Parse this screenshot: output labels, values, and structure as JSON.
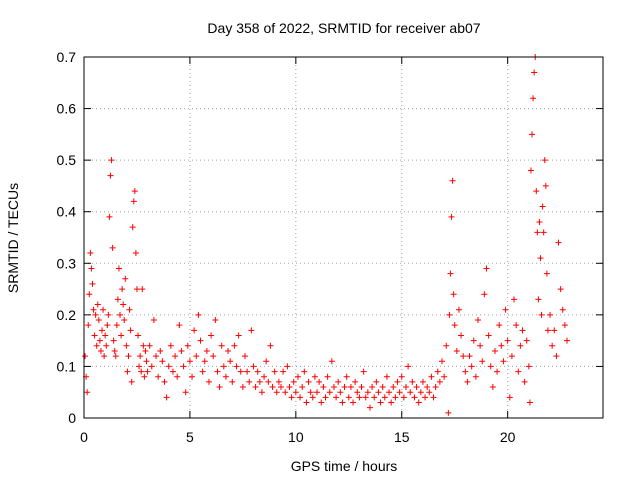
{
  "chart_data": {
    "type": "scatter",
    "title": "Day 358 of 2022, SRMTID for receiver ab07",
    "xlabel": "GPS time / hours",
    "ylabel": "SRMTID / TECUs",
    "xlim": [
      0,
      24.5
    ],
    "ylim": [
      0,
      0.7
    ],
    "x_ticks": [
      0,
      5,
      10,
      15,
      20
    ],
    "x_tick_labels": [
      "0",
      "5",
      "10",
      "15",
      "20"
    ],
    "y_ticks": [
      0,
      0.1,
      0.2,
      0.3,
      0.4,
      0.5,
      0.6,
      0.7
    ],
    "y_tick_labels": [
      "0",
      "0.1",
      "0.2",
      "0.3",
      "0.4",
      "0.5",
      "0.6",
      "0.7"
    ],
    "grid": true,
    "marker": "+",
    "series_color": "#ff0000",
    "series": [
      {
        "name": "SRMTID",
        "points": [
          [
            0.05,
            0.12
          ],
          [
            0.1,
            0.08
          ],
          [
            0.15,
            0.05
          ],
          [
            0.2,
            0.18
          ],
          [
            0.25,
            0.24
          ],
          [
            0.3,
            0.32
          ],
          [
            0.35,
            0.29
          ],
          [
            0.4,
            0.26
          ],
          [
            0.45,
            0.21
          ],
          [
            0.5,
            0.16
          ],
          [
            0.55,
            0.2
          ],
          [
            0.6,
            0.14
          ],
          [
            0.65,
            0.22
          ],
          [
            0.7,
            0.19
          ],
          [
            0.75,
            0.15
          ],
          [
            0.8,
            0.13
          ],
          [
            0.85,
            0.17
          ],
          [
            0.9,
            0.21
          ],
          [
            0.95,
            0.12
          ],
          [
            1.0,
            0.16
          ],
          [
            1.05,
            0.14
          ],
          [
            1.1,
            0.18
          ],
          [
            1.15,
            0.2
          ],
          [
            1.2,
            0.39
          ],
          [
            1.25,
            0.47
          ],
          [
            1.3,
            0.5
          ],
          [
            1.35,
            0.33
          ],
          [
            1.4,
            0.15
          ],
          [
            1.45,
            0.13
          ],
          [
            1.5,
            0.12
          ],
          [
            1.55,
            0.18
          ],
          [
            1.6,
            0.23
          ],
          [
            1.65,
            0.29
          ],
          [
            1.7,
            0.2
          ],
          [
            1.75,
            0.16
          ],
          [
            1.8,
            0.25
          ],
          [
            1.85,
            0.22
          ],
          [
            1.9,
            0.19
          ],
          [
            1.95,
            0.27
          ],
          [
            2.0,
            0.14
          ],
          [
            2.05,
            0.09
          ],
          [
            2.1,
            0.12
          ],
          [
            2.15,
            0.21
          ],
          [
            2.2,
            0.17
          ],
          [
            2.25,
            0.07
          ],
          [
            2.3,
            0.37
          ],
          [
            2.35,
            0.42
          ],
          [
            2.4,
            0.44
          ],
          [
            2.45,
            0.32
          ],
          [
            2.5,
            0.25
          ],
          [
            2.55,
            0.16
          ],
          [
            2.6,
            0.1
          ],
          [
            2.65,
            0.12
          ],
          [
            2.7,
            0.09
          ],
          [
            2.75,
            0.25
          ],
          [
            2.8,
            0.14
          ],
          [
            2.85,
            0.08
          ],
          [
            2.9,
            0.13
          ],
          [
            2.95,
            0.11
          ],
          [
            3.0,
            0.09
          ],
          [
            3.1,
            0.14
          ],
          [
            3.2,
            0.1
          ],
          [
            3.3,
            0.19
          ],
          [
            3.4,
            0.12
          ],
          [
            3.5,
            0.08
          ],
          [
            3.6,
            0.13
          ],
          [
            3.7,
            0.11
          ],
          [
            3.8,
            0.07
          ],
          [
            3.9,
            0.04
          ],
          [
            4.0,
            0.1
          ],
          [
            4.1,
            0.14
          ],
          [
            4.2,
            0.09
          ],
          [
            4.3,
            0.12
          ],
          [
            4.4,
            0.08
          ],
          [
            4.5,
            0.18
          ],
          [
            4.6,
            0.13
          ],
          [
            4.7,
            0.1
          ],
          [
            4.8,
            0.05
          ],
          [
            4.9,
            0.14
          ],
          [
            5.0,
            0.11
          ],
          [
            5.1,
            0.08
          ],
          [
            5.2,
            0.17
          ],
          [
            5.3,
            0.12
          ],
          [
            5.4,
            0.2
          ],
          [
            5.5,
            0.15
          ],
          [
            5.6,
            0.09
          ],
          [
            5.7,
            0.11
          ],
          [
            5.8,
            0.13
          ],
          [
            5.9,
            0.07
          ],
          [
            6.0,
            0.16
          ],
          [
            6.1,
            0.12
          ],
          [
            6.2,
            0.19
          ],
          [
            6.3,
            0.09
          ],
          [
            6.4,
            0.06
          ],
          [
            6.5,
            0.14
          ],
          [
            6.6,
            0.1
          ],
          [
            6.7,
            0.08
          ],
          [
            6.8,
            0.13
          ],
          [
            6.9,
            0.11
          ],
          [
            7.0,
            0.07
          ],
          [
            7.1,
            0.14
          ],
          [
            7.2,
            0.1
          ],
          [
            7.3,
            0.16
          ],
          [
            7.4,
            0.09
          ],
          [
            7.5,
            0.06
          ],
          [
            7.6,
            0.12
          ],
          [
            7.7,
            0.09
          ],
          [
            7.8,
            0.07
          ],
          [
            7.9,
            0.17
          ],
          [
            8.0,
            0.1
          ],
          [
            8.1,
            0.06
          ],
          [
            8.2,
            0.09
          ],
          [
            8.3,
            0.07
          ],
          [
            8.4,
            0.05
          ],
          [
            8.5,
            0.08
          ],
          [
            8.6,
            0.11
          ],
          [
            8.7,
            0.07
          ],
          [
            8.8,
            0.14
          ],
          [
            8.9,
            0.06
          ],
          [
            9.0,
            0.09
          ],
          [
            9.1,
            0.05
          ],
          [
            9.2,
            0.07
          ],
          [
            9.3,
            0.06
          ],
          [
            9.4,
            0.09
          ],
          [
            9.5,
            0.05
          ],
          [
            9.6,
            0.1
          ],
          [
            9.7,
            0.06
          ],
          [
            9.8,
            0.04
          ],
          [
            9.9,
            0.07
          ],
          [
            10.0,
            0.05
          ],
          [
            10.1,
            0.08
          ],
          [
            10.2,
            0.04
          ],
          [
            10.3,
            0.06
          ],
          [
            10.4,
            0.09
          ],
          [
            10.5,
            0.03
          ],
          [
            10.6,
            0.07
          ],
          [
            10.7,
            0.05
          ],
          [
            10.8,
            0.04
          ],
          [
            10.9,
            0.08
          ],
          [
            11.0,
            0.05
          ],
          [
            11.1,
            0.07
          ],
          [
            11.2,
            0.03
          ],
          [
            11.3,
            0.06
          ],
          [
            11.4,
            0.04
          ],
          [
            11.5,
            0.08
          ],
          [
            11.6,
            0.05
          ],
          [
            11.7,
            0.11
          ],
          [
            11.8,
            0.06
          ],
          [
            11.9,
            0.04
          ],
          [
            12.0,
            0.07
          ],
          [
            12.1,
            0.05
          ],
          [
            12.2,
            0.03
          ],
          [
            12.3,
            0.06
          ],
          [
            12.4,
            0.08
          ],
          [
            12.5,
            0.04
          ],
          [
            12.6,
            0.06
          ],
          [
            12.7,
            0.03
          ],
          [
            12.8,
            0.07
          ],
          [
            12.9,
            0.05
          ],
          [
            13.0,
            0.04
          ],
          [
            13.1,
            0.06
          ],
          [
            13.2,
            0.09
          ],
          [
            13.3,
            0.04
          ],
          [
            13.4,
            0.05
          ],
          [
            13.5,
            0.02
          ],
          [
            13.6,
            0.06
          ],
          [
            13.7,
            0.04
          ],
          [
            13.8,
            0.07
          ],
          [
            13.9,
            0.05
          ],
          [
            14.0,
            0.03
          ],
          [
            14.1,
            0.06
          ],
          [
            14.2,
            0.04
          ],
          [
            14.3,
            0.08
          ],
          [
            14.4,
            0.05
          ],
          [
            14.5,
            0.03
          ],
          [
            14.6,
            0.06
          ],
          [
            14.7,
            0.04
          ],
          [
            14.8,
            0.07
          ],
          [
            14.9,
            0.05
          ],
          [
            15.0,
            0.08
          ],
          [
            15.1,
            0.04
          ],
          [
            15.2,
            0.06
          ],
          [
            15.3,
            0.1
          ],
          [
            15.4,
            0.05
          ],
          [
            15.5,
            0.07
          ],
          [
            15.6,
            0.04
          ],
          [
            15.7,
            0.06
          ],
          [
            15.8,
            0.03
          ],
          [
            15.9,
            0.05
          ],
          [
            16.0,
            0.07
          ],
          [
            16.1,
            0.04
          ],
          [
            16.2,
            0.06
          ],
          [
            16.3,
            0.05
          ],
          [
            16.4,
            0.08
          ],
          [
            16.5,
            0.04
          ],
          [
            16.6,
            0.06
          ],
          [
            16.7,
            0.09
          ],
          [
            16.8,
            0.07
          ],
          [
            16.9,
            0.11
          ],
          [
            17.0,
            0.08
          ],
          [
            17.1,
            0.14
          ],
          [
            17.2,
            0.01
          ],
          [
            17.25,
            0.2
          ],
          [
            17.3,
            0.28
          ],
          [
            17.35,
            0.39
          ],
          [
            17.4,
            0.46
          ],
          [
            17.45,
            0.24
          ],
          [
            17.5,
            0.18
          ],
          [
            17.6,
            0.13
          ],
          [
            17.7,
            0.21
          ],
          [
            17.8,
            0.16
          ],
          [
            17.9,
            0.12
          ],
          [
            18.0,
            0.09
          ],
          [
            18.1,
            0.07
          ],
          [
            18.2,
            0.12
          ],
          [
            18.3,
            0.1
          ],
          [
            18.4,
            0.15
          ],
          [
            18.5,
            0.08
          ],
          [
            18.6,
            0.19
          ],
          [
            18.7,
            0.14
          ],
          [
            18.8,
            0.11
          ],
          [
            18.9,
            0.24
          ],
          [
            19.0,
            0.29
          ],
          [
            19.1,
            0.16
          ],
          [
            19.2,
            0.1
          ],
          [
            19.3,
            0.06
          ],
          [
            19.4,
            0.13
          ],
          [
            19.5,
            0.09
          ],
          [
            19.6,
            0.18
          ],
          [
            19.7,
            0.14
          ],
          [
            19.8,
            0.11
          ],
          [
            19.9,
            0.21
          ],
          [
            20.0,
            0.15
          ],
          [
            20.1,
            0.04
          ],
          [
            20.2,
            0.12
          ],
          [
            20.3,
            0.23
          ],
          [
            20.4,
            0.18
          ],
          [
            20.5,
            0.09
          ],
          [
            20.6,
            0.14
          ],
          [
            20.7,
            0.17
          ],
          [
            20.8,
            0.07
          ],
          [
            20.9,
            0.15
          ],
          [
            21.0,
            0.1
          ],
          [
            21.05,
            0.03
          ],
          [
            21.1,
            0.48
          ],
          [
            21.15,
            0.55
          ],
          [
            21.2,
            0.62
          ],
          [
            21.25,
            0.67
          ],
          [
            21.3,
            0.7
          ],
          [
            21.35,
            0.44
          ],
          [
            21.4,
            0.36
          ],
          [
            21.45,
            0.23
          ],
          [
            21.5,
            0.38
          ],
          [
            21.55,
            0.31
          ],
          [
            21.6,
            0.2
          ],
          [
            21.65,
            0.41
          ],
          [
            21.7,
            0.36
          ],
          [
            21.75,
            0.5
          ],
          [
            21.8,
            0.45
          ],
          [
            21.85,
            0.28
          ],
          [
            21.9,
            0.17
          ],
          [
            22.0,
            0.2
          ],
          [
            22.1,
            0.14
          ],
          [
            22.2,
            0.17
          ],
          [
            22.3,
            0.12
          ],
          [
            22.4,
            0.34
          ],
          [
            22.5,
            0.25
          ],
          [
            22.6,
            0.21
          ],
          [
            22.7,
            0.18
          ],
          [
            22.8,
            0.15
          ]
        ]
      }
    ]
  }
}
